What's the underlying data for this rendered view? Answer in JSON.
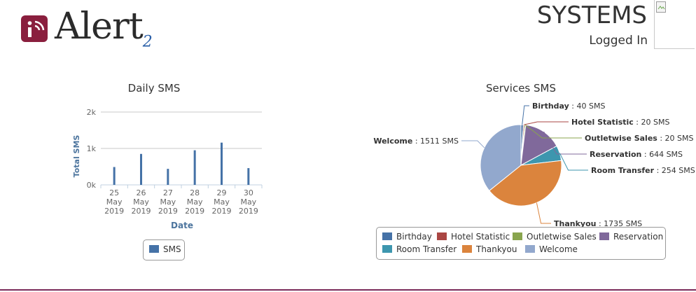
{
  "header": {
    "logo_text": "Alert",
    "logo_superscript": "2",
    "brand": "SYSTEMS",
    "login_status": "Logged In"
  },
  "daily_chart": {
    "legend": "SMS",
    "legend_color": "#4572A7"
  },
  "services_chart": {
    "legend": [
      "Birthday",
      "Hotel Statistic",
      "Outletwise Sales",
      "Reservation",
      "Room Transfer",
      "Thankyou",
      "Welcome"
    ]
  },
  "chart_data": [
    {
      "type": "bar",
      "title": "Daily SMS",
      "xlabel": "Date",
      "ylabel": "Total SMS",
      "categories": [
        "25 May 2019",
        "26 May 2019",
        "27 May 2019",
        "28 May 2019",
        "29 May 2019",
        "30 May 2019"
      ],
      "category_lines": [
        [
          "25",
          "May",
          "2019"
        ],
        [
          "26",
          "May",
          "2019"
        ],
        [
          "27",
          "May",
          "2019"
        ],
        [
          "28",
          "May",
          "2019"
        ],
        [
          "29",
          "May",
          "2019"
        ],
        [
          "30",
          "May",
          "2019"
        ]
      ],
      "yticks": [
        "0k",
        "1k",
        "2k"
      ],
      "ylim": [
        0,
        2000
      ],
      "series": [
        {
          "name": "SMS",
          "values": [
            490,
            850,
            440,
            950,
            1160,
            460
          ],
          "color": "#4572A7"
        }
      ],
      "grid": true,
      "legend_position": "bottom"
    },
    {
      "type": "pie",
      "title": "Services SMS",
      "slices": [
        {
          "name": "Birthday",
          "value": 40,
          "label": "Birthday",
          "value_text": "40 SMS",
          "color": "#4572A7"
        },
        {
          "name": "Hotel Statistic",
          "value": 20,
          "label": "Hotel Statistic",
          "value_text": "20 SMS",
          "color": "#AA4643"
        },
        {
          "name": "Outletwise Sales",
          "value": 20,
          "label": "Outletwise Sales",
          "value_text": "20 SMS",
          "color": "#89A54E"
        },
        {
          "name": "Reservation",
          "value": 644,
          "label": "Reservation",
          "value_text": "644 SMS",
          "color": "#80699B"
        },
        {
          "name": "Room Transfer",
          "value": 254,
          "label": "Room Transfer",
          "value_text": "254 SMS",
          "color": "#3D96AE"
        },
        {
          "name": "Thankyou",
          "value": 1735,
          "label": "Thankyou",
          "value_text": "1735 SMS",
          "color": "#DB843D"
        },
        {
          "name": "Welcome",
          "value": 1511,
          "label": "Welcome",
          "value_text": "1511 SMS",
          "color": "#92A8CD"
        }
      ],
      "legend_position": "bottom"
    }
  ]
}
